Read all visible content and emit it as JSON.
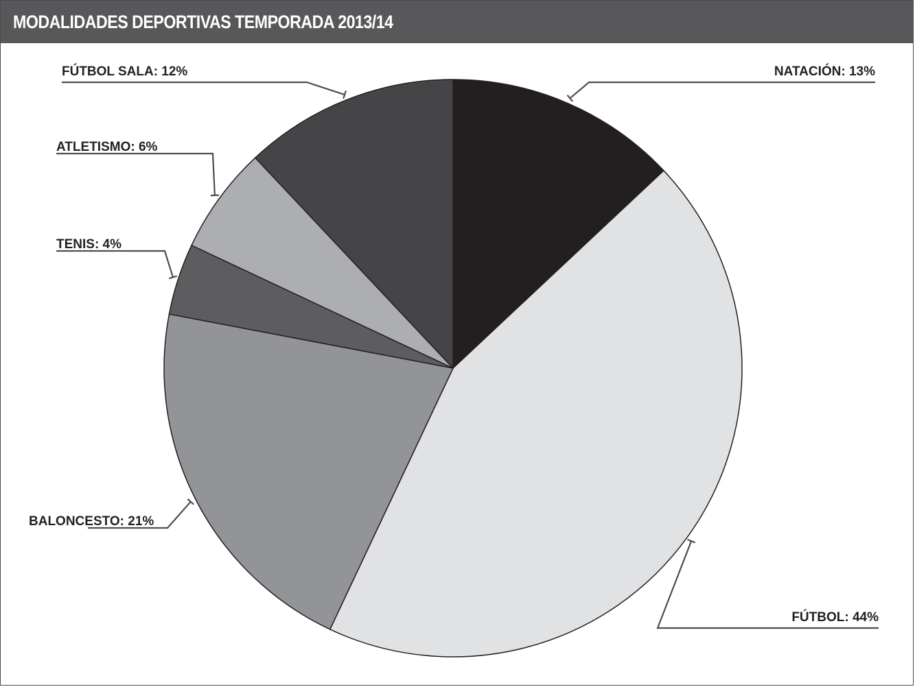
{
  "title": "MODALIDADES DEPORTIVAS TEMPORADA 2013/14",
  "colors": {
    "header_bg": "#58585a",
    "header_text": "#ffffff",
    "slice_stroke": "#231f20",
    "leader": "#4d4d4f"
  },
  "chart_data": {
    "type": "pie",
    "title": "MODALIDADES DEPORTIVAS TEMPORADA 2013/14",
    "slices": [
      {
        "name": "NATACIÓN",
        "value": 13,
        "label": "NATACIÓN: 13%",
        "color": "#231f20"
      },
      {
        "name": "FÚTBOL",
        "value": 44,
        "label": "FÚTBOL: 44%",
        "color": "#e1e2e3"
      },
      {
        "name": "BALONCESTO",
        "value": 21,
        "label": "BALONCESTO: 21%",
        "color": "#939497"
      },
      {
        "name": "TENIS",
        "value": 4,
        "label": "TENIS: 4%",
        "color": "#5d5d5f"
      },
      {
        "name": "ATLETISMO",
        "value": 6,
        "label": "ATLETISMO: 6%",
        "color": "#adaeb1"
      },
      {
        "name": "FÚTBOL SALA",
        "value": 12,
        "label": "FÚTBOL SALA: 12%",
        "color": "#454547"
      }
    ]
  }
}
